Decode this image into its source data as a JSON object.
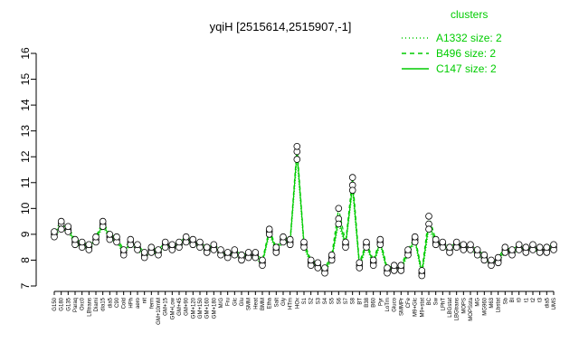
{
  "chart_data": {
    "type": "line",
    "title": "yqiH [2515614,2515907,-1]",
    "xlabel": "",
    "ylabel": "",
    "ylim": [
      7,
      16
    ],
    "yticks": [
      7,
      8,
      9,
      10,
      11,
      12,
      13,
      14,
      15,
      16
    ],
    "grid": false,
    "legend": {
      "title": "clusters",
      "placement": "top-right",
      "entries": [
        {
          "label": "A1332 size: 2",
          "style": "dotted"
        },
        {
          "label": "B496 size: 2",
          "style": "dashed"
        },
        {
          "label": "C147 size: 2",
          "style": "solid"
        }
      ]
    },
    "x_tick_labels": [
      "G150",
      "G180",
      "G135",
      "Paraq",
      "Oxc0",
      "LBtrans",
      "Diami",
      "dia15",
      "dia5",
      "C90",
      "Cold",
      "HPh",
      "aero",
      "nit",
      "ferm",
      "GM+10mM",
      "GM+15",
      "GM+Low",
      "GM+45",
      "GM+90",
      "GM+120",
      "GM+150",
      "GM+160",
      "GM+180",
      "M/G",
      "Fru",
      "Glc",
      "Glu",
      "SMM",
      "Heat",
      "BMM",
      "Etha",
      "Salt",
      "Gly",
      "HTm",
      "HOx",
      "S1",
      "S2",
      "S3",
      "S4",
      "S5",
      "S6",
      "S7",
      "S8",
      "BT",
      "B38",
      "B60",
      "Pyr",
      "LoTm",
      "Gluco",
      "SMMPr",
      "CFe",
      "M9+Glc",
      "M9+stat",
      "BC",
      "Sw",
      "LPhT",
      "LBGstat",
      "LBGtrans",
      "MOPS",
      "MOPSsta",
      "MG",
      "MG960",
      "M63",
      "Lbstat",
      "Sb",
      "Bl",
      "t0",
      "t1",
      "t2",
      "t3",
      "dia5",
      "UMS"
    ],
    "line_color": "#00cc00",
    "point_stroke": "#000000",
    "series": [
      {
        "name": "C147",
        "values": [
          9.0,
          9.4,
          9.2,
          8.7,
          8.6,
          8.5,
          8.8,
          9.4,
          8.9,
          8.8,
          8.3,
          8.7,
          8.5,
          8.2,
          8.4,
          8.3,
          8.6,
          8.5,
          8.6,
          8.8,
          8.7,
          8.6,
          8.4,
          8.5,
          8.3,
          8.2,
          8.3,
          8.1,
          8.2,
          8.2,
          7.9,
          9.1,
          8.4,
          8.8,
          8.7,
          12.2,
          8.6,
          7.9,
          7.8,
          7.6,
          8.1,
          9.6,
          8.6,
          10.9,
          7.8,
          8.6,
          7.9,
          8.7,
          7.6,
          7.7,
          7.7,
          8.3,
          8.8,
          7.5,
          9.4,
          8.7,
          8.6,
          8.4,
          8.6,
          8.5,
          8.5,
          8.3,
          8.1,
          7.9,
          8.0,
          8.4,
          8.3,
          8.5,
          8.4,
          8.5,
          8.4,
          8.4,
          8.5
        ]
      },
      {
        "name": "A1332",
        "values": [
          8.9,
          9.2,
          9.1,
          8.6,
          8.5,
          8.4,
          8.7,
          9.3,
          8.8,
          8.7,
          8.2,
          8.6,
          8.4,
          8.1,
          8.3,
          8.2,
          8.5,
          8.4,
          8.5,
          8.7,
          8.6,
          8.5,
          8.3,
          8.4,
          8.2,
          8.1,
          8.2,
          8.0,
          8.1,
          8.1,
          7.8,
          9.0,
          8.3,
          8.7,
          8.6,
          11.9,
          8.5,
          7.8,
          7.7,
          7.5,
          8.0,
          9.4,
          8.5,
          10.7,
          7.7,
          8.5,
          7.8,
          8.6,
          7.5,
          7.6,
          7.6,
          8.2,
          8.7,
          7.4,
          9.2,
          8.6,
          8.5,
          8.3,
          8.5,
          8.4,
          8.4,
          8.2,
          8.0,
          7.8,
          7.9,
          8.3,
          8.2,
          8.4,
          8.3,
          8.4,
          8.3,
          8.3,
          8.4
        ]
      },
      {
        "name": "B496",
        "values": [
          9.1,
          9.5,
          9.3,
          8.8,
          8.7,
          8.6,
          8.9,
          9.5,
          9.0,
          8.9,
          8.4,
          8.8,
          8.6,
          8.3,
          8.5,
          8.4,
          8.7,
          8.6,
          8.7,
          8.9,
          8.8,
          8.7,
          8.5,
          8.6,
          8.4,
          8.3,
          8.4,
          8.2,
          8.3,
          8.3,
          8.0,
          9.2,
          8.5,
          8.9,
          8.8,
          12.4,
          8.7,
          8.0,
          7.9,
          7.7,
          8.2,
          10.0,
          8.7,
          11.2,
          7.9,
          8.7,
          8.0,
          8.8,
          7.7,
          7.8,
          7.8,
          8.4,
          8.9,
          7.6,
          9.7,
          8.8,
          8.7,
          8.5,
          8.7,
          8.6,
          8.6,
          8.4,
          8.2,
          8.0,
          8.1,
          8.5,
          8.4,
          8.6,
          8.5,
          8.6,
          8.5,
          8.5,
          8.6
        ]
      }
    ]
  }
}
